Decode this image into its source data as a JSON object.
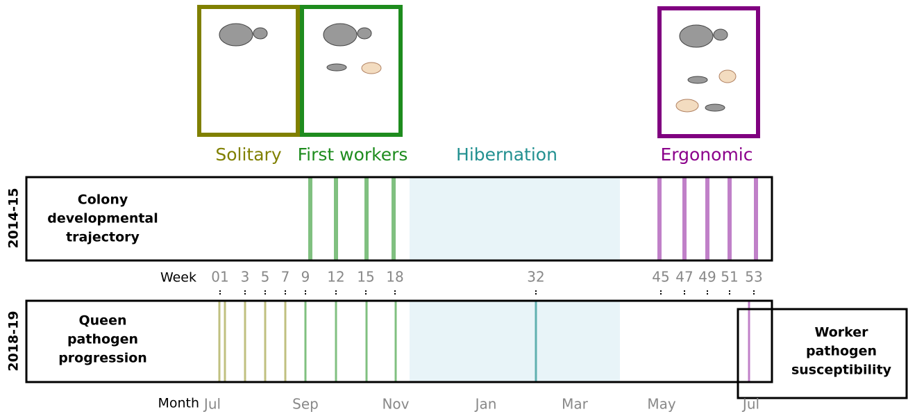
{
  "phases": [
    "Solitary",
    "First workers",
    "Hibernation",
    "Ergonomic"
  ],
  "rows": [
    {
      "year": "2014-15",
      "label": [
        "Colony",
        "developmental",
        "trajectory"
      ]
    },
    {
      "year": "2018-19",
      "label": [
        "Queen",
        "pathogen",
        "progression"
      ]
    }
  ],
  "side_box": {
    "label": [
      "Worker",
      "pathogen",
      "susceptibility"
    ]
  },
  "week_axis": {
    "title": "Week",
    "labels": [
      "01",
      "3",
      "5",
      "7",
      "9",
      "12",
      "15",
      "18",
      "32",
      "45",
      "47",
      "49",
      "51",
      "53"
    ]
  },
  "month_axis": {
    "title": "Month",
    "labels": [
      "Jul",
      "Sep",
      "Nov",
      "Jan",
      "Mar",
      "May",
      "Jul"
    ]
  }
}
